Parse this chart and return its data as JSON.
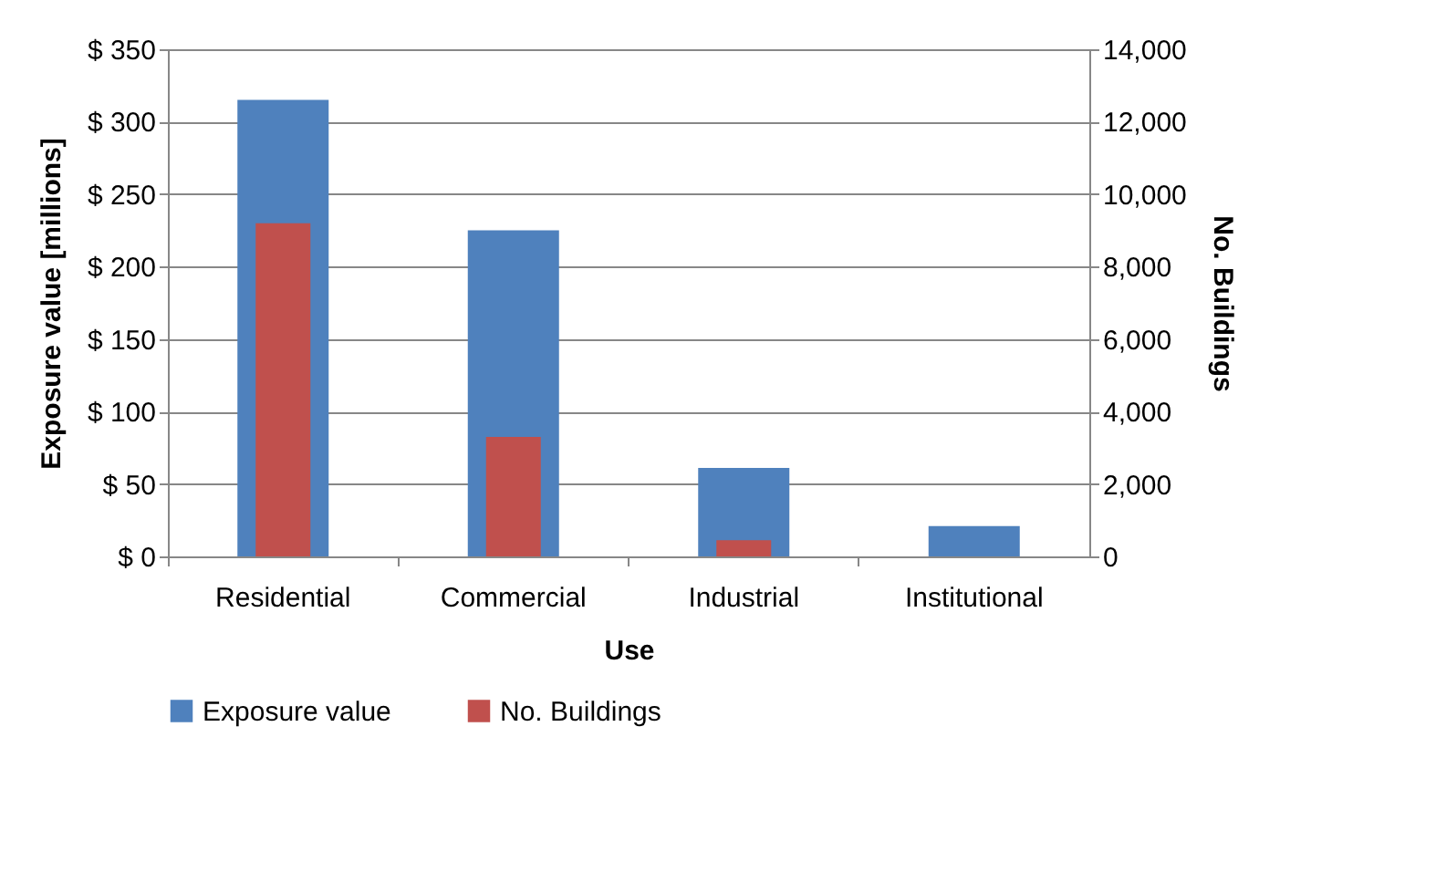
{
  "chart_data": {
    "type": "bar",
    "xlabel": "Use",
    "ylabel": "Exposure value  [millions]",
    "y2label": "No. Buildings",
    "categories": [
      "Residential",
      "Commercial",
      "Industrial",
      "Institutional"
    ],
    "series": [
      {
        "name": "Exposure value",
        "color": "#4f81bd",
        "values": [
          315,
          225,
          61,
          21
        ]
      },
      {
        "name": "No. Buildings",
        "color": "#c0504d",
        "axis": "y2",
        "values": [
          9200,
          3300,
          450,
          null
        ]
      }
    ],
    "ylim": [
      0,
      350
    ],
    "yticks": [
      {
        "value": 0,
        "label": "$ 0"
      },
      {
        "value": 50,
        "label": "$ 50"
      },
      {
        "value": 100,
        "label": "$ 100"
      },
      {
        "value": 150,
        "label": "$ 150"
      },
      {
        "value": 200,
        "label": "$ 200"
      },
      {
        "value": 250,
        "label": "$ 250"
      },
      {
        "value": 300,
        "label": "$ 300"
      },
      {
        "value": 350,
        "label": "$ 350"
      }
    ],
    "y2lim": [
      0,
      14000
    ],
    "y2ticks": [
      0,
      {
        "value": 2000,
        "label": "2,000"
      },
      {
        "value": 4000,
        "label": "4,000"
      },
      {
        "value": 6000,
        "label": "6,000"
      },
      {
        "value": 8000,
        "label": "8,000"
      },
      {
        "value": 10000,
        "label": "10,000"
      },
      {
        "value": 12000,
        "label": "12,000"
      },
      {
        "value": 14000,
        "label": "14,000"
      }
    ],
    "grid": "y",
    "legend": "bottom"
  }
}
